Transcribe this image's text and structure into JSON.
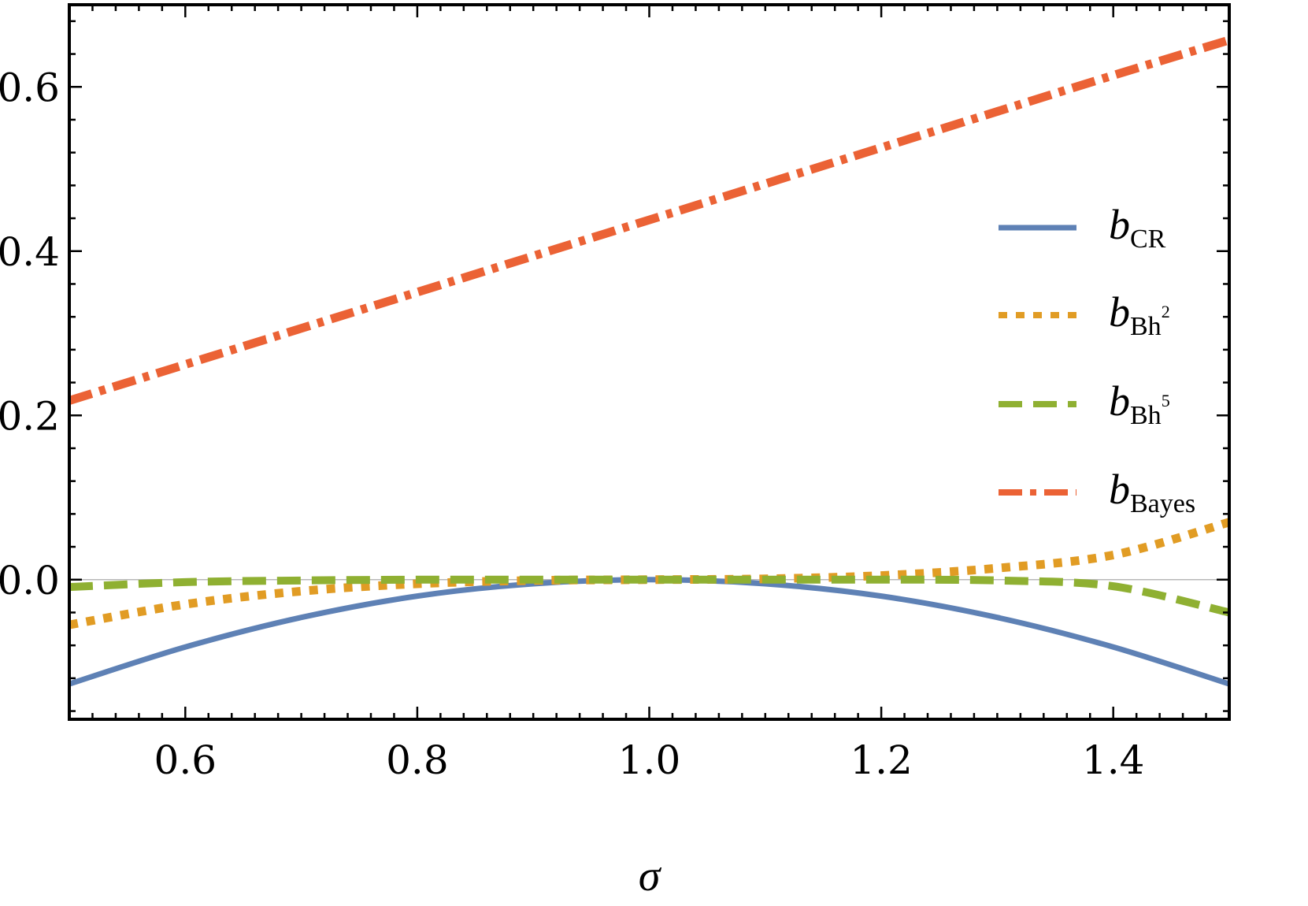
{
  "chart_data": {
    "type": "line",
    "xlabel": "σ",
    "ylabel": "",
    "xlim": [
      0.5,
      1.5
    ],
    "ylim": [
      -0.17,
      0.7
    ],
    "x_ticks": [
      0.6,
      0.8,
      1.0,
      1.2,
      1.4
    ],
    "x_tick_labels": [
      "0.6",
      "0.8",
      "1.0",
      "1.2",
      "1.4"
    ],
    "y_ticks": [
      0.0,
      0.2,
      0.4,
      0.6
    ],
    "y_tick_labels": [
      "0.0",
      "0.2",
      "0.4",
      "0.6"
    ],
    "grid": false,
    "zero_line": true,
    "legend_position": "right",
    "x": [
      0.5,
      0.6,
      0.7,
      0.8,
      0.9,
      1.0,
      1.1,
      1.2,
      1.3,
      1.4,
      1.5
    ],
    "series": [
      {
        "name_base": "b",
        "name_sub": "CR",
        "name_sup": "",
        "color": "#5E81B5",
        "style": "solid",
        "values": [
          -0.127,
          -0.082,
          -0.046,
          -0.02,
          -0.005,
          0.0,
          -0.005,
          -0.02,
          -0.046,
          -0.082,
          -0.127
        ]
      },
      {
        "name_base": "b",
        "name_sub": "Bh",
        "name_sup": "2",
        "color": "#E19C24",
        "style": "dotted",
        "values": [
          -0.055,
          -0.03,
          -0.014,
          -0.005,
          -0.001,
          0.0,
          0.001,
          0.005,
          0.014,
          0.03,
          0.07
        ]
      },
      {
        "name_base": "b",
        "name_sub": "Bh",
        "name_sup": "5",
        "color": "#8FB032",
        "style": "dashed",
        "values": [
          -0.009,
          -0.003,
          -0.001,
          0.0,
          0.0,
          0.0,
          0.0,
          0.0,
          -0.001,
          -0.008,
          -0.04
        ]
      },
      {
        "name_base": "b",
        "name_sub": "Bayes",
        "name_sup": "",
        "color": "#EB6235",
        "style": "dashdot",
        "values": [
          0.218,
          0.262,
          0.306,
          0.35,
          0.394,
          0.438,
          0.482,
          0.526,
          0.57,
          0.614,
          0.657
        ]
      }
    ]
  }
}
